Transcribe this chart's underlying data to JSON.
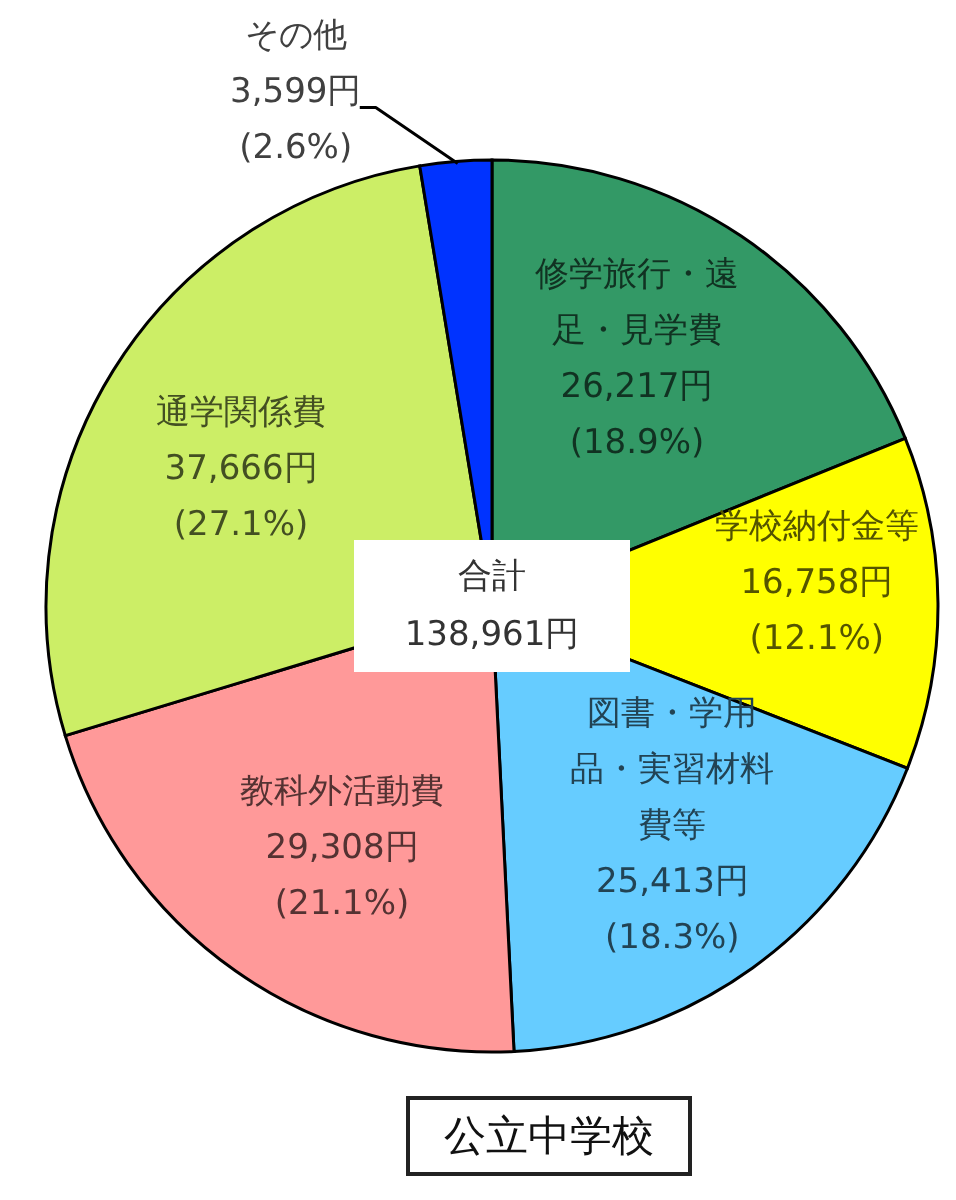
{
  "chart_data": {
    "type": "pie",
    "title": "公立中学校",
    "categories": [
      "修学旅行・遠足・見学費",
      "学校納付金等",
      "図書・学用品・実習材料費等",
      "教科外活動費",
      "通学関係費",
      "その他"
    ],
    "values": [
      26217,
      16758,
      25413,
      29308,
      37666,
      3599
    ],
    "colors": [
      "#339966",
      "#ffff00",
      "#66ccff",
      "#ff9999",
      "#ccee66",
      "#0033ff"
    ],
    "value_labels": [
      "26,217円 (18.9%)",
      "16,758円 (12.1%)",
      "25,413円 (18.3%)",
      "29,308円 (21.1%)",
      "37,666円 (27.1%)",
      "3,599円 (2.6%)"
    ],
    "annotations": [
      "合計",
      "138,961円"
    ]
  }
}
